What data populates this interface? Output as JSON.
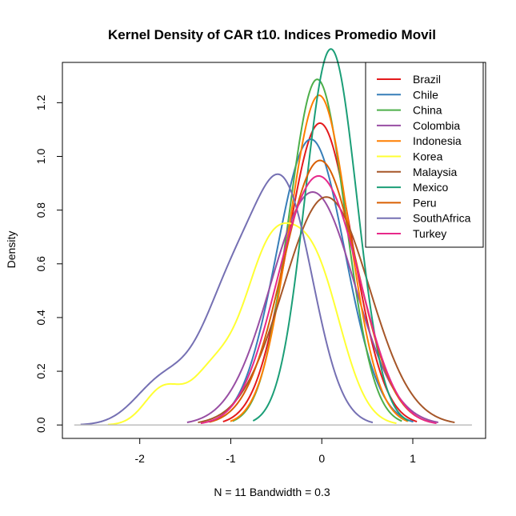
{
  "chart_data": {
    "type": "line",
    "title": "Kernel Density of CAR t10. Indices Promedio Movil",
    "xlabel": "N = 11   Bandwidth = 0.3",
    "ylabel": "Density",
    "xlim": [
      -2.85,
      1.8
    ],
    "ylim": [
      -0.05,
      1.35
    ],
    "x_ticks": [
      -2,
      -1,
      0,
      1
    ],
    "y_ticks": [
      0.0,
      0.2,
      0.4,
      0.6,
      0.8,
      1.0,
      1.2
    ],
    "x_tick_labels": [
      "-2",
      "-1",
      "0",
      "1"
    ],
    "y_tick_labels": [
      "0.0",
      "0.2",
      "0.4",
      "0.6",
      "0.8",
      "1.0",
      "1.2"
    ],
    "baseline": 0,
    "legend_position": "top-right",
    "series": [
      {
        "name": "Brazil",
        "color": "#E41A1C",
        "components": [
          {
            "mu": -0.02,
            "sd": 0.355,
            "w": 1.0
          }
        ]
      },
      {
        "name": "Chile",
        "color": "#377EB8",
        "components": [
          {
            "mu": -0.12,
            "sd": 0.375,
            "w": 1.0
          }
        ]
      },
      {
        "name": "China",
        "color": "#4DAF4A",
        "components": [
          {
            "mu": -0.05,
            "sd": 0.31,
            "w": 1.0
          }
        ]
      },
      {
        "name": "Colombia",
        "color": "#984EA3",
        "components": [
          {
            "mu": -0.1,
            "sd": 0.46,
            "w": 1.0
          }
        ]
      },
      {
        "name": "Indonesia",
        "color": "#FF7F00",
        "components": [
          {
            "mu": -0.03,
            "sd": 0.325,
            "w": 1.0
          }
        ]
      },
      {
        "name": "Korea",
        "color": "#FFFF33",
        "components": [
          {
            "mu": -1.75,
            "sd": 0.2,
            "w": 0.065
          },
          {
            "mu": -0.6,
            "sd": 0.28,
            "w": 0.39
          },
          {
            "mu": -0.08,
            "sd": 0.3,
            "w": 0.425
          },
          {
            "mu": -1.2,
            "sd": 0.25,
            "w": 0.12
          }
        ]
      },
      {
        "name": "Malaysia",
        "color": "#A65628",
        "components": [
          {
            "mu": 0.05,
            "sd": 0.47,
            "w": 1.0
          }
        ]
      },
      {
        "name": "Mexico",
        "color": "#1B9E77",
        "components": [
          {
            "mu": 0.1,
            "sd": 0.285,
            "w": 1.0
          }
        ]
      },
      {
        "name": "Peru",
        "color": "#D95F02",
        "components": [
          {
            "mu": -0.02,
            "sd": 0.405,
            "w": 1.0
          }
        ]
      },
      {
        "name": "SouthAfrica",
        "color": "#7570B3",
        "components": [
          {
            "mu": -0.4,
            "sd": 0.32,
            "w": 0.66
          },
          {
            "mu": -1.0,
            "sd": 0.33,
            "w": 0.39
          },
          {
            "mu": -1.75,
            "sd": 0.3,
            "w": 0.12
          }
        ]
      },
      {
        "name": "Turkey",
        "color": "#E7298A",
        "components": [
          {
            "mu": -0.25,
            "sd": 0.36,
            "w": 0.5
          },
          {
            "mu": 0.18,
            "sd": 0.36,
            "w": 0.5
          }
        ]
      }
    ]
  }
}
